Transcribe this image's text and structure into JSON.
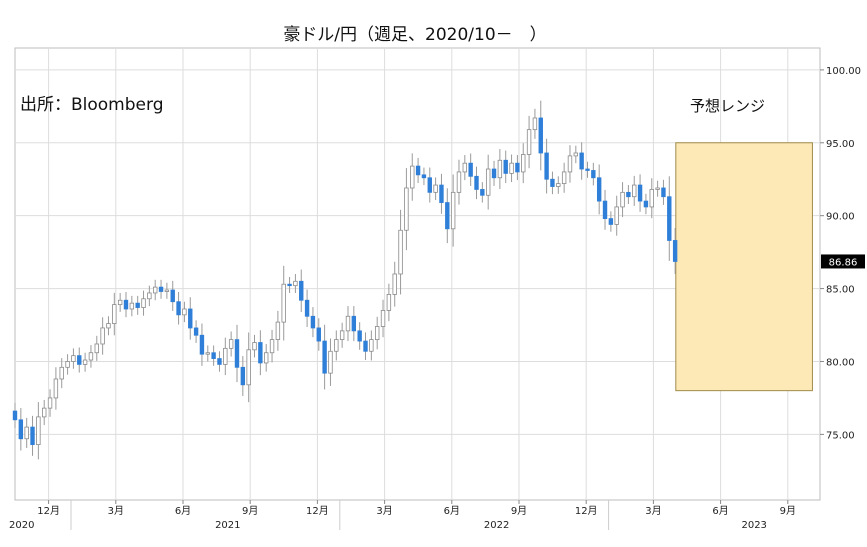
{
  "chart_data": {
    "type": "candlestick",
    "title": "豪ドル/円（週足、2020/10－　）",
    "source": "出所：Bloomberg",
    "forecast_label": "予想レンジ",
    "last_price_label": "86.86",
    "ylim": [
      70.5,
      101.5
    ],
    "y_ticks": [
      75,
      80,
      85,
      90,
      95,
      100
    ],
    "y_tick_labels": [
      "75.00",
      "80.00",
      "85.00",
      "90.00",
      "95.00",
      "100.00"
    ],
    "x_month_ticks": [
      {
        "m": 2,
        "label": "12月"
      },
      {
        "m": 5,
        "label": "3月"
      },
      {
        "m": 8,
        "label": "6月"
      },
      {
        "m": 11,
        "label": "9月"
      },
      {
        "m": 14,
        "label": "12月"
      },
      {
        "m": 17,
        "label": "3月"
      },
      {
        "m": 20,
        "label": "6月"
      },
      {
        "m": 23,
        "label": "9月"
      },
      {
        "m": 26,
        "label": "12月"
      },
      {
        "m": 29,
        "label": "3月"
      },
      {
        "m": 32,
        "label": "6月"
      },
      {
        "m": 35,
        "label": "9月"
      }
    ],
    "year_labels": [
      {
        "m": 0.8,
        "label": "2020"
      },
      {
        "m": 10,
        "label": "2021"
      },
      {
        "m": 22,
        "label": "2022"
      },
      {
        "m": 33.5,
        "label": "2023"
      }
    ],
    "forecast_range": {
      "from_m": 30.0,
      "to_m": 36.1,
      "low": 78.0,
      "high": 95.0
    },
    "weekly_closes": [
      76.0,
      74.7,
      75.5,
      74.3,
      76.2,
      76.8,
      77.5,
      78.8,
      79.6,
      80.0,
      80.4,
      79.8,
      80.1,
      80.6,
      81.2,
      82.3,
      82.6,
      83.9,
      84.2,
      83.6,
      84.0,
      83.7,
      84.3,
      84.7,
      85.1,
      84.8,
      84.9,
      84.1,
      83.2,
      83.6,
      82.3,
      81.8,
      80.5,
      80.6,
      80.2,
      79.8,
      80.9,
      81.5,
      79.6,
      78.4,
      80.8,
      81.3,
      79.9,
      80.6,
      81.5,
      82.7,
      85.3,
      85.2,
      85.5,
      84.2,
      83.1,
      82.3,
      81.4,
      79.2,
      80.7,
      81.5,
      82.1,
      83.1,
      82.1,
      81.4,
      80.7,
      81.5,
      82.4,
      83.5,
      84.6,
      86.0,
      89.0,
      91.9,
      93.4,
      92.8,
      92.6,
      91.6,
      92.1,
      90.9,
      89.1,
      91.6,
      93.0,
      93.6,
      92.7,
      91.8,
      91.4,
      93.2,
      92.6,
      93.8,
      92.9,
      93.6,
      93.0,
      94.2,
      95.9,
      96.7,
      94.3,
      92.5,
      92.0,
      92.2,
      93.0,
      94.1,
      94.3,
      93.2,
      93.1,
      92.6,
      91.0,
      89.8,
      89.4,
      90.6,
      91.6,
      91.3,
      92.1,
      91.0,
      90.6,
      91.8,
      91.9,
      91.3,
      88.3,
      86.86
    ]
  }
}
